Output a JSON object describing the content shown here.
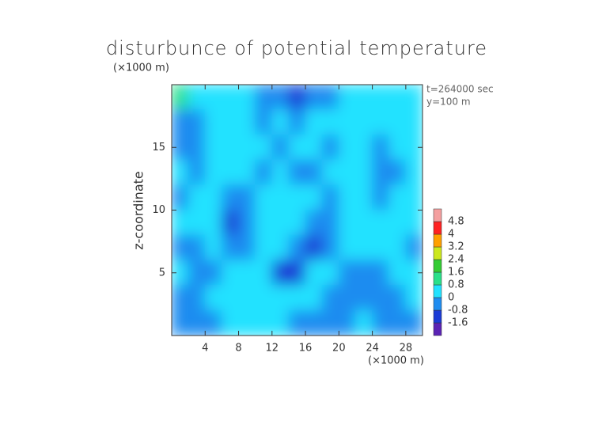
{
  "chart_data": {
    "type": "contour",
    "title": "disturbunce of potential temperature",
    "y_unit": "(×1000 m)",
    "x_unit": "(×1000 m)",
    "ylabel": "z-coordinate",
    "annotations": [
      "t=264000 sec",
      "y=100 m"
    ],
    "x": [
      1,
      3,
      5,
      7,
      9,
      11,
      13,
      15,
      17,
      19,
      21,
      23,
      25,
      27,
      29
    ],
    "y": [
      19,
      17,
      15,
      13,
      11,
      9,
      7,
      5,
      3,
      1
    ],
    "z": [
      [
        0.8,
        0.6,
        0.3,
        0.2,
        0.1,
        -0.3,
        -0.5,
        -0.9,
        -0.6,
        -0.2,
        0.1,
        0.2,
        0.3,
        0.6,
        0.7
      ],
      [
        -0.4,
        -0.3,
        0.2,
        0.3,
        0.1,
        -0.2,
        0.2,
        -0.3,
        0.2,
        0.1,
        0.3,
        0.2,
        0.1,
        0.2,
        0.3
      ],
      [
        -0.8,
        -0.5,
        0.2,
        0.3,
        0.2,
        0.3,
        -0.3,
        0.3,
        0.2,
        -0.3,
        0.2,
        0.2,
        -0.6,
        0.1,
        0.2
      ],
      [
        0.1,
        -0.2,
        0.2,
        0.1,
        0.3,
        -0.2,
        0.3,
        -0.2,
        -0.4,
        0.3,
        0.2,
        0.1,
        -0.7,
        -0.3,
        0.2
      ],
      [
        -0.3,
        0.2,
        0.3,
        -0.5,
        -0.2,
        0.3,
        0.2,
        0.3,
        0.1,
        -0.3,
        0.3,
        0.2,
        -0.4,
        0.1,
        0.2
      ],
      [
        0.2,
        0.1,
        0.2,
        -1.2,
        -0.4,
        0.3,
        0.2,
        0.3,
        -0.6,
        -0.3,
        0.2,
        0.3,
        0.1,
        0.3,
        0.2
      ],
      [
        -0.4,
        -0.3,
        0.1,
        -0.6,
        -0.2,
        0.3,
        0.2,
        -0.4,
        -1.2,
        -0.2,
        0.2,
        0.3,
        0.1,
        0.2,
        -0.3
      ],
      [
        0.2,
        -0.3,
        -0.2,
        0.2,
        0.7,
        0.3,
        -1.1,
        -0.9,
        0.6,
        0.2,
        -0.4,
        -0.5,
        -0.3,
        0.1,
        0.2
      ],
      [
        -0.6,
        -0.5,
        0.1,
        0.3,
        0.4,
        0.2,
        0.6,
        0.3,
        0.1,
        -0.3,
        -0.6,
        -0.7,
        -0.4,
        -0.2,
        0.1
      ],
      [
        -0.7,
        -0.4,
        -0.2,
        0.3,
        0.5,
        0.2,
        0.3,
        -0.2,
        -0.4,
        -0.5,
        -0.2,
        0.2,
        -0.3,
        -0.5,
        -0.2
      ]
    ],
    "xlim": [
      0,
      30
    ],
    "ylim": [
      0,
      20
    ],
    "xticks": [
      4,
      8,
      12,
      16,
      20,
      24,
      28
    ],
    "yticks": [
      5,
      10,
      15
    ],
    "colorbar": {
      "levels": [
        -1.6,
        -0.8,
        0,
        0.8,
        1.6,
        2.4,
        3.2,
        4,
        4.8
      ],
      "colors": [
        "#5b23b4",
        "#1b3bd6",
        "#1f8cf0",
        "#22e2ff",
        "#2ae08a",
        "#33cc33",
        "#cce81e",
        "#ffa000",
        "#ff2222",
        "#f4a0a0"
      ]
    }
  }
}
